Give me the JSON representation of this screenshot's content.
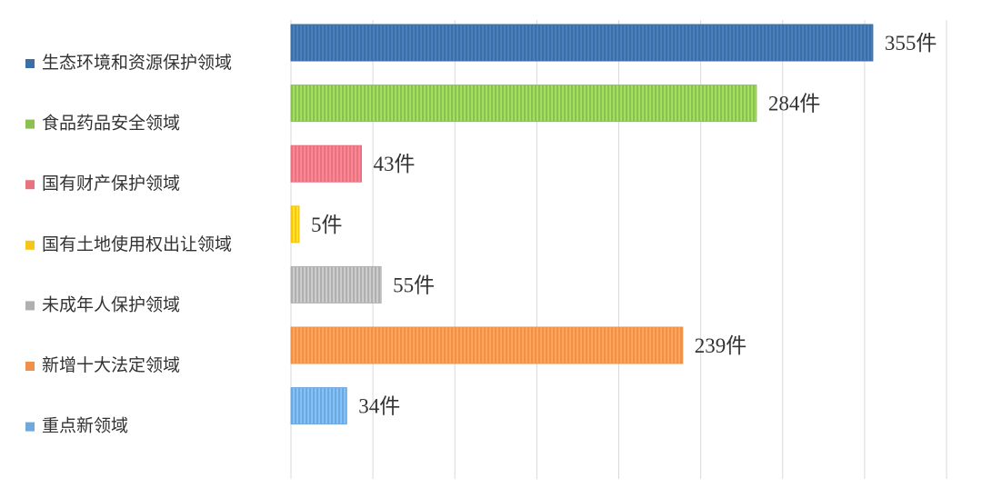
{
  "chart_data": {
    "type": "bar",
    "orientation": "horizontal",
    "categories": [
      "生态环境和资源保护领域",
      "食品药品安全领域",
      "国有财产保护领域",
      "国有土地使用权出让领域",
      "未成年人保护领域",
      "新增十大法定领域",
      "重点新领域"
    ],
    "values": [
      355,
      284,
      43,
      5,
      55,
      239,
      34
    ],
    "value_labels": [
      "355件",
      "284件",
      "43件",
      "5件",
      "55件",
      "239件",
      "34件"
    ],
    "colors": [
      "#3d6ea6",
      "#8cc152",
      "#e87380",
      "#f5c518",
      "#b0b0b0",
      "#f0904a",
      "#6fa8dc"
    ],
    "xlim": [
      0,
      400
    ],
    "x_grid_step": 50,
    "grid": true,
    "legend": "left"
  }
}
